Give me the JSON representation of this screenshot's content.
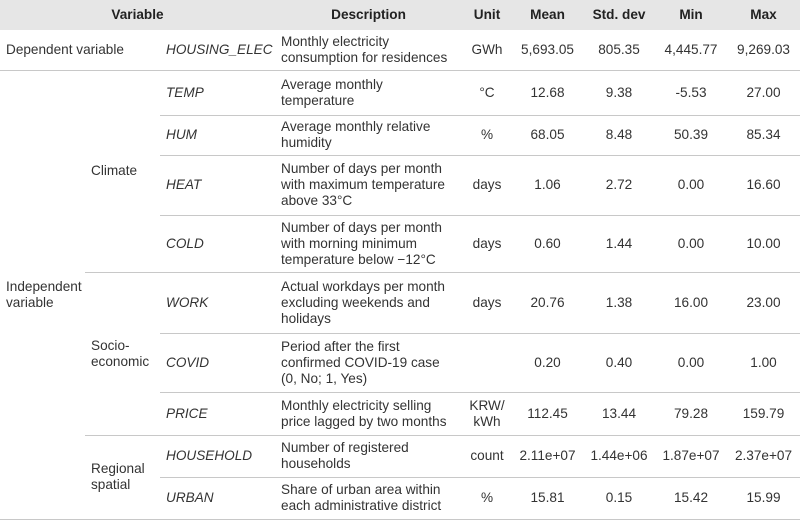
{
  "table": {
    "header": {
      "variable": "Variable",
      "description": "Description",
      "unit": "Unit",
      "mean": "Mean",
      "std_dev": "Std. dev",
      "min": "Min",
      "max": "Max"
    },
    "groups": [
      {
        "label": "Dependent variable",
        "rows": [
          {
            "name": "HOUSING_ELEC",
            "description": "Monthly electricity consumption for residences",
            "unit": "GWh",
            "mean": "5,693.05",
            "std_dev": "805.35",
            "min": "4,445.77",
            "max": "9,269.03"
          }
        ]
      },
      {
        "label": "Independent variable",
        "subgroups": [
          {
            "label": "Climate",
            "rows": [
              {
                "name": "TEMP",
                "description": "Average monthly temperature",
                "unit": "°C",
                "mean": "12.68",
                "std_dev": "9.38",
                "min": "-5.53",
                "max": "27.00"
              },
              {
                "name": "HUM",
                "description": "Average monthly relative humidity",
                "unit": "%",
                "mean": "68.05",
                "std_dev": "8.48",
                "min": "50.39",
                "max": "85.34"
              },
              {
                "name": "HEAT",
                "description": "Number of days per month with maximum temperature above 33°C",
                "unit": "days",
                "mean": "1.06",
                "std_dev": "2.72",
                "min": "0.00",
                "max": "16.60"
              },
              {
                "name": "COLD",
                "description": "Number of days per month with morning minimum temperature below −12°C",
                "unit": "days",
                "mean": "0.60",
                "std_dev": "1.44",
                "min": "0.00",
                "max": "10.00"
              }
            ]
          },
          {
            "label": "Socio-economic",
            "rows": [
              {
                "name": "WORK",
                "description": "Actual workdays per month excluding weekends and holidays",
                "unit": "days",
                "mean": "20.76",
                "std_dev": "1.38",
                "min": "16.00",
                "max": "23.00"
              },
              {
                "name": "COVID",
                "description": "Period after the first confirmed COVID-19 case (0, No; 1, Yes)",
                "mean": "0.20",
                "std_dev": "0.40",
                "min": "0.00",
                "max": "1.00"
              },
              {
                "name": "PRICE",
                "description": "Monthly electricity selling price lagged by two months",
                "unit": "KRW/ kWh",
                "mean": "112.45",
                "std_dev": "13.44",
                "min": "79.28",
                "max": "159.79"
              }
            ]
          },
          {
            "label": "Regional spatial",
            "rows": [
              {
                "name": "HOUSEHOLD",
                "description": "Number of registered households",
                "unit": "count",
                "mean": "2.11e+07",
                "std_dev": "1.44e+06",
                "min": "1.87e+07",
                "max": "2.37e+07"
              },
              {
                "name": "URBAN",
                "description": "Share of urban area within each administrative district",
                "unit": "%",
                "mean": "15.81",
                "std_dev": "0.15",
                "min": "15.42",
                "max": "15.99"
              }
            ]
          }
        ]
      }
    ]
  }
}
